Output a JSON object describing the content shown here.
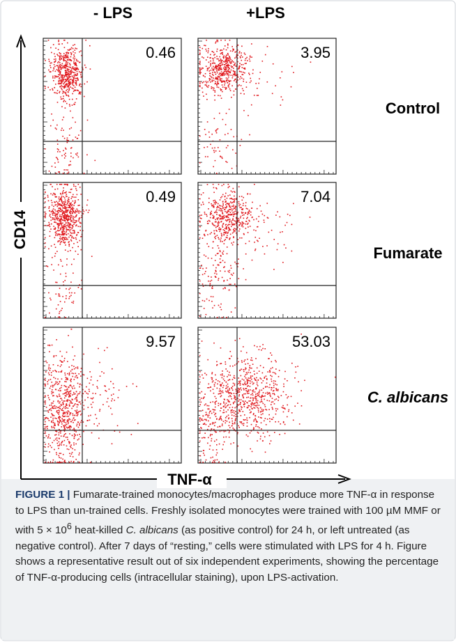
{
  "figure": {
    "columns": [
      "- LPS",
      "+LPS"
    ],
    "rows": [
      "Control",
      "Fumarate",
      "C. albicans"
    ],
    "percentages": [
      [
        "0.46",
        "3.95"
      ],
      [
        "0.49",
        "7.04"
      ],
      [
        "9.57",
        "53.03"
      ]
    ],
    "y_axis_label": "CD14",
    "x_axis_label": "TNF-α"
  },
  "caption": {
    "runs": [
      "FIGURE 1 |",
      " Fumarate-trained monocytes/macrophages produce more TNF-α in response to LPS than un-trained cells. Freshly isolated monocytes were trained with 100 µM MMF or with 5 × 10",
      "6",
      " heat-killed ",
      "C. albicans",
      " (as positive control) for 24 h, or left untreated (as negative control). After 7 days of “resting,” cells were stimulated with LPS for 4 h. Figure shows a representative result out of six independent experiments, showing the percentage of TNF-α-producing cells (intracellular staining), upon LPS-activation."
    ]
  }
}
